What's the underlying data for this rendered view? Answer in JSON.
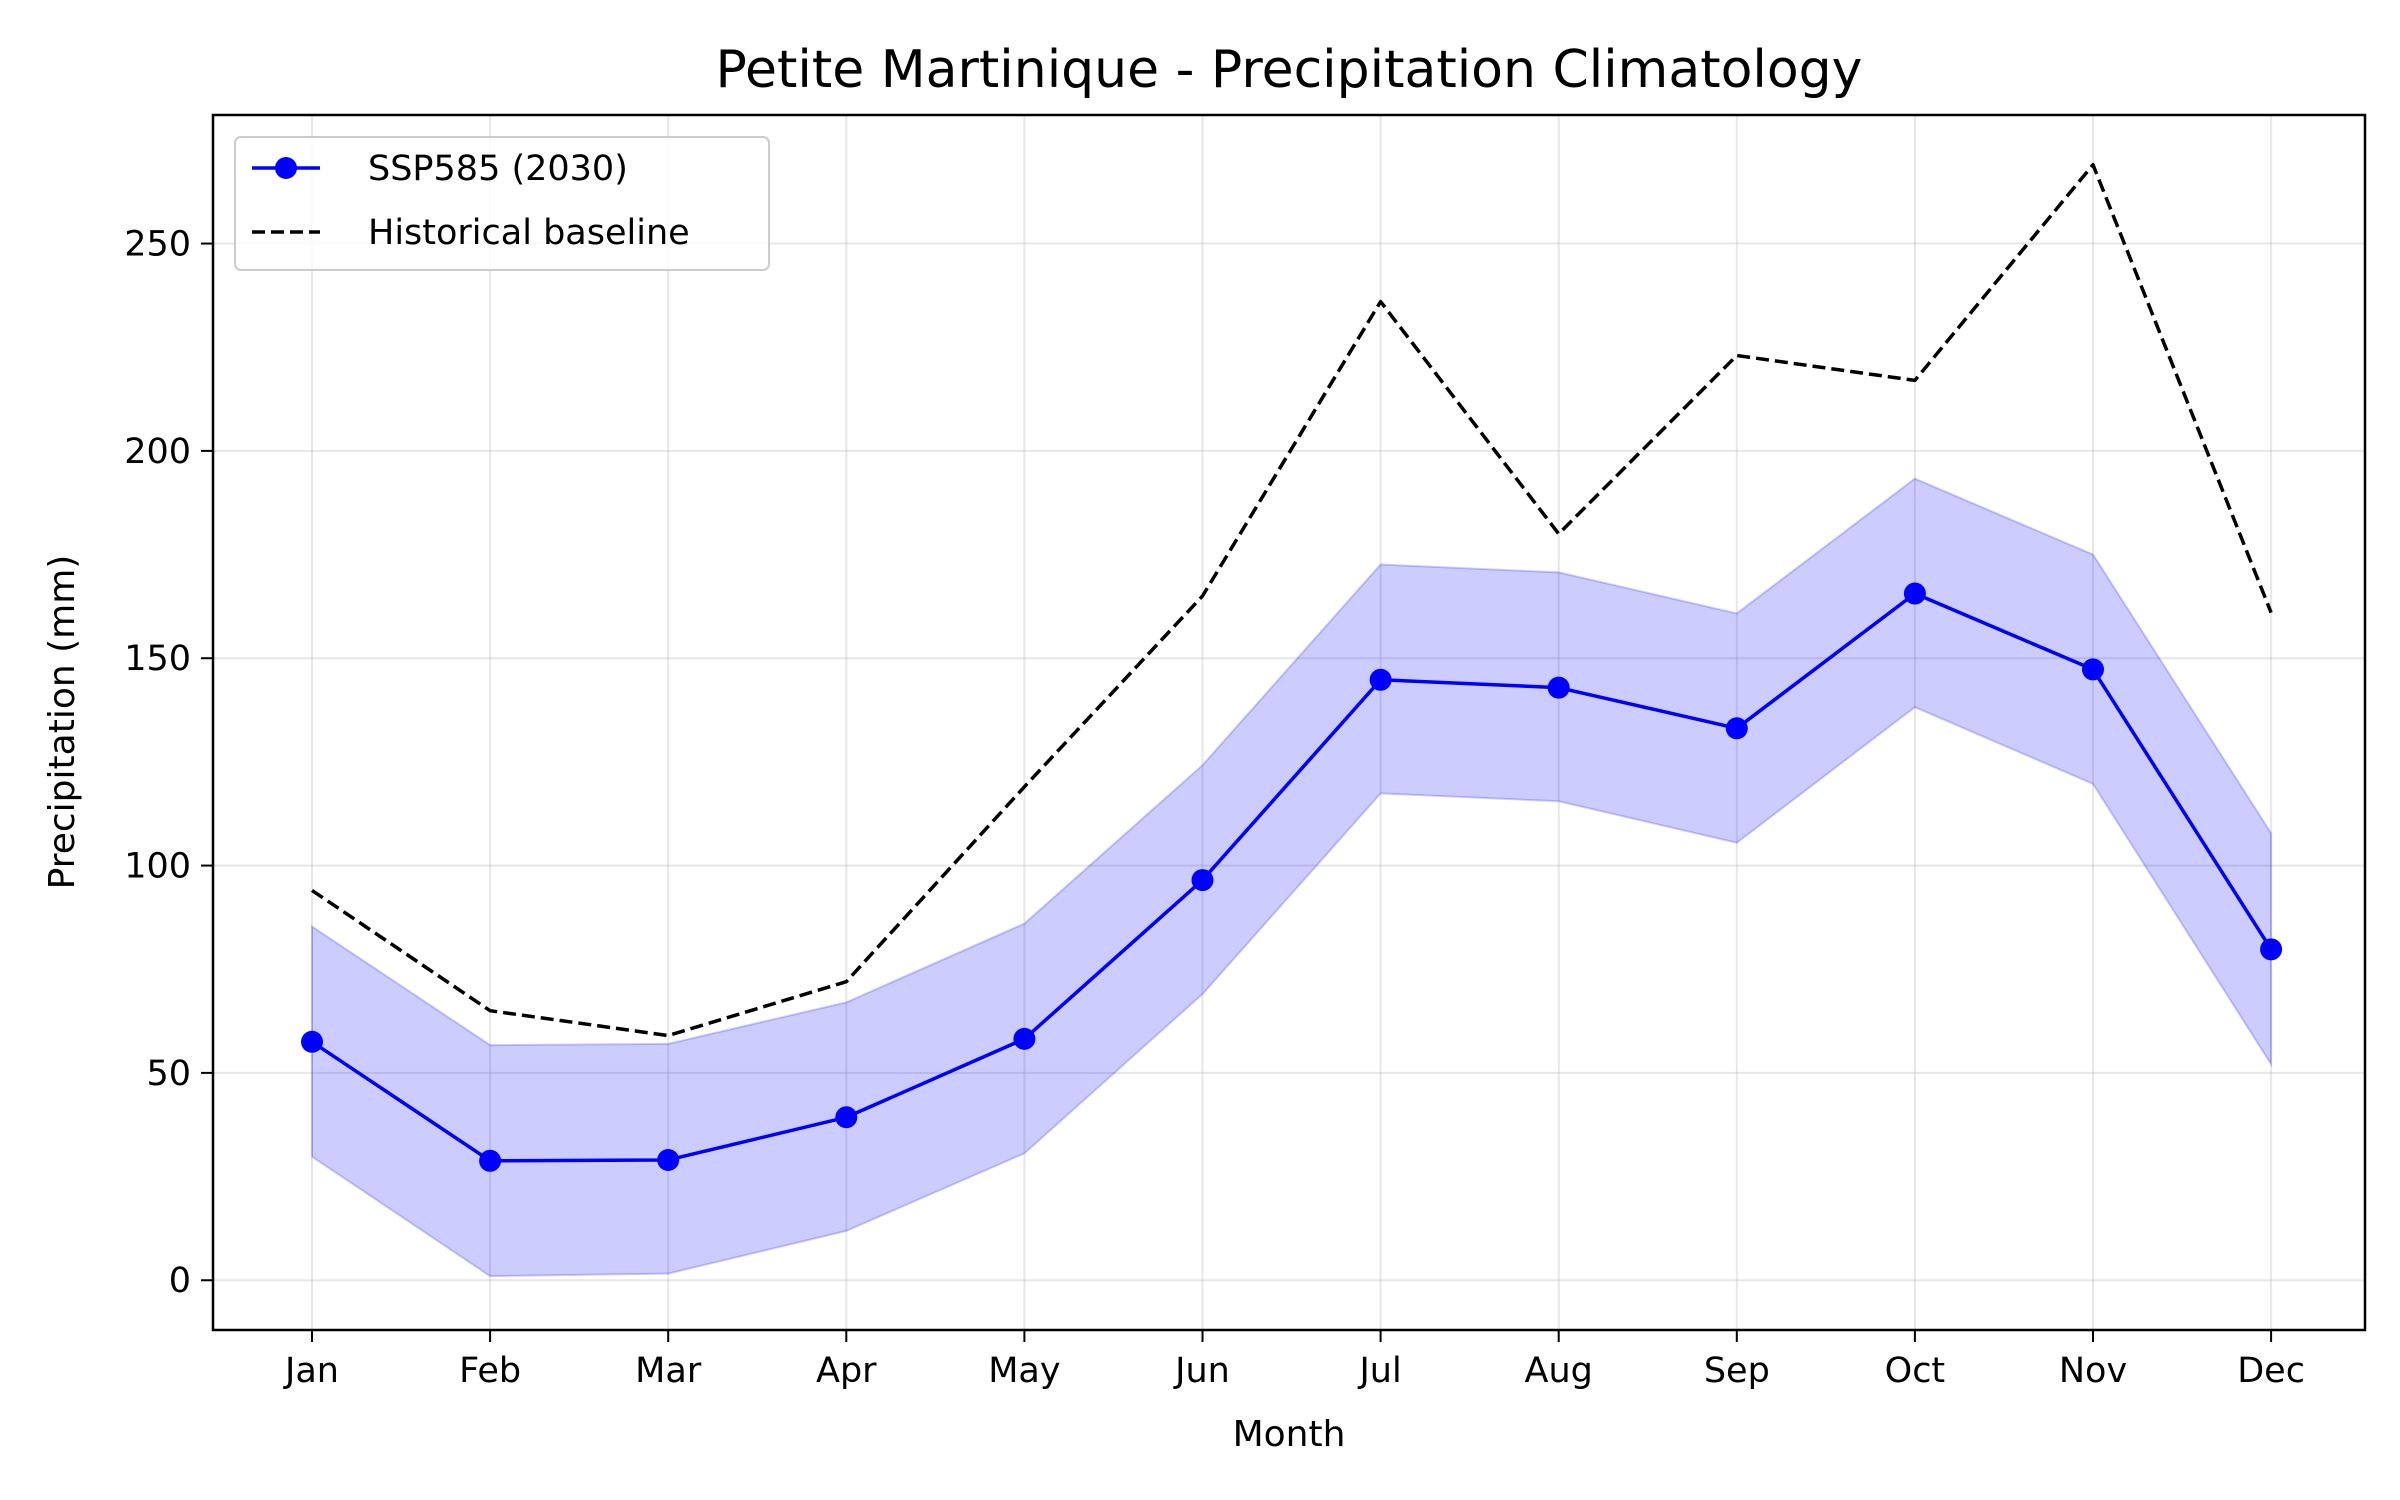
{
  "chart_data": {
    "type": "line",
    "title": "Petite Martinique - Precipitation Climatology",
    "xlabel": "Month",
    "ylabel": "Precipitation (mm)",
    "categories": [
      "Jan",
      "Feb",
      "Mar",
      "Apr",
      "May",
      "Jun",
      "Jul",
      "Aug",
      "Sep",
      "Oct",
      "Nov",
      "Dec"
    ],
    "ylim": [
      -12,
      281
    ],
    "yticks": [
      0,
      50,
      100,
      150,
      200,
      250
    ],
    "grid": true,
    "legend_position": "top-left",
    "series": [
      {
        "name": "SSP585 (2030)",
        "style": "solid line with circle markers",
        "color": "#0000ff",
        "values": [
          57.5,
          28.8,
          29.0,
          39.3,
          58.2,
          96.5,
          144.8,
          142.9,
          133.1,
          165.6,
          147.3,
          79.8
        ]
      },
      {
        "name": "Historical baseline",
        "style": "dashed line",
        "color": "#000000",
        "values": [
          94.0,
          65.0,
          59.0,
          72.0,
          119.0,
          165.0,
          236.0,
          180.0,
          223.0,
          217.0,
          269.0,
          161.0
        ]
      }
    ],
    "band": {
      "color": "#0000ff",
      "opacity": 0.2,
      "lower": [
        29.8,
        1.0,
        1.6,
        11.9,
        30.6,
        69.0,
        117.4,
        115.5,
        105.5,
        138.2,
        119.7,
        52.1
      ],
      "upper": [
        85.3,
        56.7,
        57.0,
        67.0,
        86.0,
        124.2,
        172.6,
        170.7,
        160.8,
        193.3,
        175.0,
        107.8
      ]
    }
  }
}
